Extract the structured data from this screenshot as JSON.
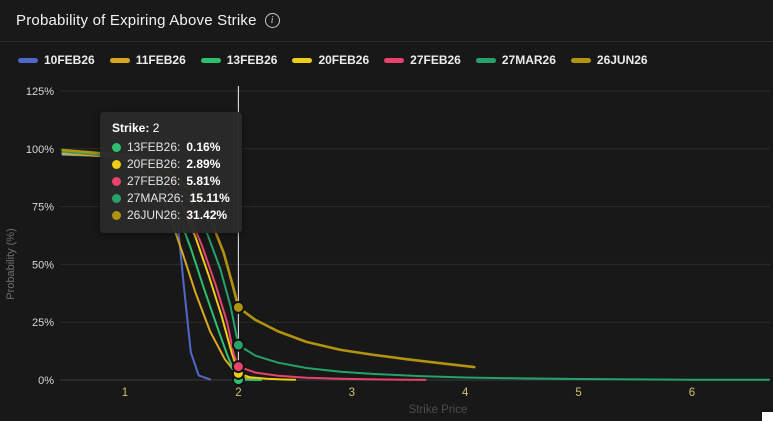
{
  "header": {
    "title": "Probability of Expiring Above Strike",
    "info_glyph": "i"
  },
  "legend": {
    "items": [
      {
        "label": "10FEB26",
        "color": "#5068c8"
      },
      {
        "label": "11FEB26",
        "color": "#d9a81c"
      },
      {
        "label": "13FEB26",
        "color": "#2ec06f"
      },
      {
        "label": "20FEB26",
        "color": "#eecd13"
      },
      {
        "label": "27FEB26",
        "color": "#e8436e"
      },
      {
        "label": "27MAR26",
        "color": "#26a269"
      },
      {
        "label": "26JUN26",
        "color": "#b1930f"
      }
    ]
  },
  "tooltip": {
    "title_label": "Strike:",
    "title_value": "2",
    "rows": [
      {
        "name": "13FEB26:",
        "value": "0.16%",
        "color": "#2ec06f"
      },
      {
        "name": "20FEB26:",
        "value": "2.89%",
        "color": "#eecd13"
      },
      {
        "name": "27FEB26:",
        "value": "5.81%",
        "color": "#e8436e"
      },
      {
        "name": "27MAR26:",
        "value": "15.11%",
        "color": "#26a269"
      },
      {
        "name": "26JUN26:",
        "value": "31.42%",
        "color": "#b1930f"
      }
    ]
  },
  "chart_data": {
    "type": "line",
    "title": "Probability of Expiring Above Strike",
    "xlabel": "Strike Price",
    "ylabel": "Probability (%)",
    "xlim": [
      0.45,
      6.7
    ],
    "ylim": [
      0,
      125
    ],
    "x_ticks": [
      1,
      2,
      3,
      4,
      5,
      6
    ],
    "y_ticks": [
      0,
      25,
      50,
      75,
      100,
      125
    ],
    "y_tick_labels": [
      "0%",
      "25%",
      "50%",
      "75%",
      "100%",
      "125%"
    ],
    "grid": true,
    "legend_position": "top",
    "crosshair_x": 2,
    "colors": {
      "grid": "#2a2a2a",
      "axis_line": "#3c3c3c",
      "x_tick": "#c9c46c",
      "y_tick": "#d8d8d8",
      "xlabel": "#4d4d4d",
      "ylabel": "#6e6e6e",
      "crosshair": "#dedede",
      "marker_ring": "#111111"
    },
    "series": [
      {
        "name": "10FEB26",
        "color": "#5068c8",
        "width": 2,
        "points": [
          [
            0.45,
            97.3
          ],
          [
            1.0,
            97
          ],
          [
            1.2,
            96
          ],
          [
            1.35,
            92
          ],
          [
            1.45,
            75
          ],
          [
            1.52,
            40
          ],
          [
            1.58,
            12
          ],
          [
            1.65,
            2
          ],
          [
            1.75,
            0.2
          ]
        ]
      },
      {
        "name": "11FEB26",
        "color": "#d9a81c",
        "width": 2,
        "points": [
          [
            0.45,
            97.8
          ],
          [
            0.9,
            96.5
          ],
          [
            1.1,
            93
          ],
          [
            1.25,
            86
          ],
          [
            1.38,
            73
          ],
          [
            1.5,
            56
          ],
          [
            1.62,
            38
          ],
          [
            1.75,
            21
          ],
          [
            1.88,
            9
          ],
          [
            1.98,
            3
          ],
          [
            2.05,
            1
          ],
          [
            2.15,
            0.3
          ]
        ]
      },
      {
        "name": "13FEB26",
        "color": "#2ec06f",
        "width": 2,
        "points": [
          [
            0.45,
            98
          ],
          [
            0.95,
            96.8
          ],
          [
            1.15,
            93.5
          ],
          [
            1.3,
            87
          ],
          [
            1.45,
            74
          ],
          [
            1.58,
            57
          ],
          [
            1.7,
            39
          ],
          [
            1.82,
            22
          ],
          [
            1.9,
            11
          ],
          [
            1.96,
            4
          ],
          [
            2.0,
            0.16
          ],
          [
            2.1,
            0.05
          ],
          [
            2.2,
            0.02
          ]
        ]
      },
      {
        "name": "20FEB26",
        "color": "#eecd13",
        "width": 2,
        "points": [
          [
            0.45,
            98.2
          ],
          [
            1.0,
            96.5
          ],
          [
            1.2,
            93
          ],
          [
            1.35,
            87
          ],
          [
            1.5,
            76
          ],
          [
            1.62,
            62
          ],
          [
            1.74,
            45
          ],
          [
            1.85,
            28
          ],
          [
            1.94,
            12
          ],
          [
            2.0,
            2.89
          ],
          [
            2.1,
            1.2
          ],
          [
            2.25,
            0.5
          ],
          [
            2.4,
            0.2
          ],
          [
            2.5,
            0.1
          ]
        ]
      },
      {
        "name": "27FEB26",
        "color": "#e8436e",
        "width": 2,
        "points": [
          [
            0.45,
            98.6
          ],
          [
            1.05,
            96
          ],
          [
            1.25,
            92
          ],
          [
            1.4,
            85
          ],
          [
            1.55,
            73
          ],
          [
            1.68,
            58
          ],
          [
            1.8,
            41
          ],
          [
            1.9,
            25
          ],
          [
            1.96,
            11
          ],
          [
            2.0,
            5.81
          ],
          [
            2.15,
            3.2
          ],
          [
            2.35,
            1.8
          ],
          [
            2.6,
            1.0
          ],
          [
            2.9,
            0.5
          ],
          [
            3.2,
            0.25
          ],
          [
            3.5,
            0.1
          ],
          [
            3.65,
            0.05
          ]
        ]
      },
      {
        "name": "27MAR26",
        "color": "#26a269",
        "width": 2,
        "points": [
          [
            0.45,
            98.8
          ],
          [
            1.1,
            96
          ],
          [
            1.3,
            92
          ],
          [
            1.45,
            86
          ],
          [
            1.6,
            76
          ],
          [
            1.72,
            64
          ],
          [
            1.84,
            48
          ],
          [
            1.93,
            32
          ],
          [
            2.0,
            15.11
          ],
          [
            2.15,
            10.5
          ],
          [
            2.35,
            7.5
          ],
          [
            2.6,
            5.2
          ],
          [
            2.9,
            3.6
          ],
          [
            3.2,
            2.6
          ],
          [
            3.6,
            1.7
          ],
          [
            4.0,
            1.1
          ],
          [
            4.5,
            0.7
          ],
          [
            5.0,
            0.45
          ],
          [
            5.5,
            0.28
          ],
          [
            6.0,
            0.15
          ],
          [
            6.68,
            0.08
          ]
        ]
      },
      {
        "name": "26JUN26",
        "color": "#b1930f",
        "width": 2.6,
        "points": [
          [
            0.45,
            99.5
          ],
          [
            1.05,
            97
          ],
          [
            1.25,
            94
          ],
          [
            1.45,
            88
          ],
          [
            1.6,
            81
          ],
          [
            1.75,
            70
          ],
          [
            1.87,
            55
          ],
          [
            1.95,
            41
          ],
          [
            2.0,
            31.42
          ],
          [
            2.15,
            26
          ],
          [
            2.35,
            21
          ],
          [
            2.6,
            16.5
          ],
          [
            2.9,
            13
          ],
          [
            3.2,
            10.8
          ],
          [
            3.5,
            8.9
          ],
          [
            3.8,
            7.2
          ],
          [
            4.08,
            5.6
          ]
        ]
      }
    ],
    "markers": [
      {
        "series": "13FEB26",
        "x": 2,
        "y": 0.16,
        "color": "#2ec06f"
      },
      {
        "series": "20FEB26",
        "x": 2,
        "y": 2.89,
        "color": "#eecd13"
      },
      {
        "series": "27FEB26",
        "x": 2,
        "y": 5.81,
        "color": "#e8436e"
      },
      {
        "series": "27MAR26",
        "x": 2,
        "y": 15.11,
        "color": "#26a269"
      },
      {
        "series": "26JUN26",
        "x": 2,
        "y": 31.42,
        "color": "#b1930f"
      }
    ]
  }
}
